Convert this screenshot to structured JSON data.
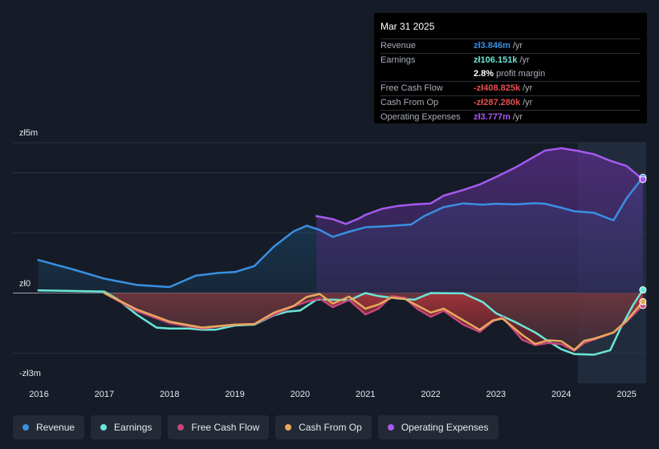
{
  "axis": {
    "y_top_label": "zł5m",
    "y_zero_label": "zł0",
    "y_bottom_label": "-zł3m"
  },
  "tooltip": {
    "date": "Mar 31 2025",
    "rows": [
      {
        "label": "Revenue",
        "value": "zł3.846m",
        "unit": "/yr",
        "color": "#3a8fe2"
      },
      {
        "label": "Earnings",
        "value": "zł106.151k",
        "unit": "/yr",
        "color": "#6ce5d7"
      },
      {
        "label": "",
        "value": "2.8%",
        "unit": "profit margin",
        "color": "#ffffff"
      },
      {
        "label": "Free Cash Flow",
        "value": "-zł408.825k",
        "unit": "/yr",
        "color": "#e5504f"
      },
      {
        "label": "Cash From Op",
        "value": "-zł287.280k",
        "unit": "/yr",
        "color": "#e5504f"
      },
      {
        "label": "Operating Expenses",
        "value": "zł3.777m",
        "unit": "/yr",
        "color": "#a65af0"
      }
    ]
  },
  "legend": [
    {
      "label": "Revenue",
      "color": "#3a8fe2"
    },
    {
      "label": "Earnings",
      "color": "#6ce5d7"
    },
    {
      "label": "Free Cash Flow",
      "color": "#c8457a"
    },
    {
      "label": "Cash From Op",
      "color": "#e7a95c"
    },
    {
      "label": "Operating Expenses",
      "color": "#a65af0"
    }
  ],
  "chart_data": {
    "type": "area",
    "title": "",
    "xlabel": "",
    "ylabel": "",
    "ylim": [
      -3,
      5
    ],
    "units": "zł millions",
    "x_ticks": [
      "2016",
      "2017",
      "2018",
      "2019",
      "2020",
      "2021",
      "2022",
      "2023",
      "2024",
      "2025"
    ],
    "x_range": [
      2015.6,
      2025.3
    ],
    "forecast_shade_from": 2024.25,
    "series": [
      {
        "name": "Revenue",
        "color": "#3a8fe2",
        "x": [
          2015.99,
          2016.5,
          2017.0,
          2017.5,
          2018.0,
          2018.4,
          2018.75,
          2019.0,
          2019.3,
          2019.6,
          2019.9,
          2020.1,
          2020.3,
          2020.5,
          2020.75,
          2021.0,
          2021.3,
          2021.7,
          2021.9,
          2022.2,
          2022.5,
          2022.8,
          2023.0,
          2023.3,
          2023.6,
          2023.75,
          2024.0,
          2024.2,
          2024.5,
          2024.8,
          2025.0,
          2025.25
        ],
        "values": [
          1.1,
          0.8,
          0.48,
          0.27,
          0.2,
          0.58,
          0.67,
          0.7,
          0.9,
          1.55,
          2.05,
          2.24,
          2.1,
          1.87,
          2.04,
          2.19,
          2.22,
          2.28,
          2.56,
          2.86,
          2.98,
          2.94,
          2.97,
          2.95,
          2.99,
          2.97,
          2.84,
          2.72,
          2.67,
          2.42,
          3.15,
          3.846
        ]
      },
      {
        "name": "Earnings",
        "color": "#6ce5d7",
        "x": [
          2015.99,
          2016.5,
          2017.0,
          2017.2,
          2017.5,
          2017.8,
          2018.0,
          2018.3,
          2018.5,
          2018.7,
          2019.0,
          2019.3,
          2019.6,
          2019.8,
          2020.0,
          2020.25,
          2020.5,
          2020.75,
          2021.0,
          2021.2,
          2021.5,
          2021.75,
          2022.0,
          2022.5,
          2022.8,
          2023.0,
          2023.3,
          2023.6,
          2023.8,
          2024.0,
          2024.2,
          2024.5,
          2024.75,
          2024.9,
          2025.1,
          2025.25
        ],
        "values": [
          0.09,
          0.07,
          0.05,
          -0.2,
          -0.72,
          -1.15,
          -1.18,
          -1.18,
          -1.22,
          -1.22,
          -1.08,
          -1.05,
          -0.74,
          -0.62,
          -0.58,
          -0.22,
          -0.22,
          -0.24,
          0.0,
          -0.1,
          -0.18,
          -0.22,
          0.0,
          -0.01,
          -0.3,
          -0.67,
          -0.97,
          -1.31,
          -1.6,
          -1.87,
          -2.03,
          -2.05,
          -1.9,
          -1.2,
          -0.4,
          0.106
        ]
      },
      {
        "name": "Free Cash Flow",
        "color": "#c8457a",
        "x": [
          2017.0,
          2017.5,
          2018.0,
          2018.5,
          2019.0,
          2019.3,
          2019.6,
          2019.9,
          2020.1,
          2020.3,
          2020.5,
          2020.75,
          2021.0,
          2021.2,
          2021.4,
          2021.6,
          2021.8,
          2022.0,
          2022.2,
          2022.5,
          2022.75,
          2022.95,
          2023.1,
          2023.4,
          2023.6,
          2023.8,
          2024.0,
          2024.2,
          2024.35,
          2024.5,
          2024.8,
          2025.0,
          2025.25
        ],
        "values": [
          0.0,
          -0.6,
          -1.0,
          -1.18,
          -1.05,
          -1.03,
          -0.72,
          -0.44,
          -0.29,
          -0.18,
          -0.47,
          -0.23,
          -0.71,
          -0.52,
          -0.1,
          -0.16,
          -0.53,
          -0.79,
          -0.59,
          -1.05,
          -1.29,
          -0.94,
          -0.8,
          -1.55,
          -1.73,
          -1.66,
          -1.7,
          -1.92,
          -1.66,
          -1.55,
          -1.32,
          -0.95,
          -0.408
        ]
      },
      {
        "name": "Cash From Op",
        "color": "#e7a95c",
        "x": [
          2017.0,
          2017.5,
          2018.0,
          2018.5,
          2019.0,
          2019.3,
          2019.6,
          2019.9,
          2020.1,
          2020.3,
          2020.5,
          2020.75,
          2021.0,
          2021.2,
          2021.4,
          2021.6,
          2021.8,
          2022.0,
          2022.2,
          2022.5,
          2022.75,
          2022.95,
          2023.1,
          2023.4,
          2023.6,
          2023.8,
          2024.0,
          2024.2,
          2024.35,
          2024.5,
          2024.8,
          2025.0,
          2025.25
        ],
        "values": [
          0.0,
          -0.55,
          -0.95,
          -1.15,
          -1.05,
          -1.03,
          -0.65,
          -0.43,
          -0.13,
          -0.03,
          -0.35,
          -0.12,
          -0.52,
          -0.38,
          -0.15,
          -0.19,
          -0.42,
          -0.65,
          -0.52,
          -0.91,
          -1.22,
          -0.91,
          -0.85,
          -1.39,
          -1.69,
          -1.57,
          -1.6,
          -1.89,
          -1.59,
          -1.52,
          -1.31,
          -0.92,
          -0.287
        ]
      },
      {
        "name": "Operating Expenses",
        "color": "#a65af0",
        "x": [
          2020.25,
          2020.5,
          2020.7,
          2020.9,
          2021.0,
          2021.25,
          2021.5,
          2021.75,
          2022.0,
          2022.2,
          2022.5,
          2022.75,
          2023.0,
          2023.3,
          2023.5,
          2023.75,
          2024.0,
          2024.25,
          2024.5,
          2024.75,
          2025.0,
          2025.25
        ],
        "values": [
          2.56,
          2.46,
          2.3,
          2.48,
          2.6,
          2.8,
          2.9,
          2.95,
          2.98,
          3.24,
          3.43,
          3.61,
          3.86,
          4.18,
          4.43,
          4.74,
          4.82,
          4.73,
          4.62,
          4.4,
          4.23,
          3.777
        ]
      }
    ]
  }
}
